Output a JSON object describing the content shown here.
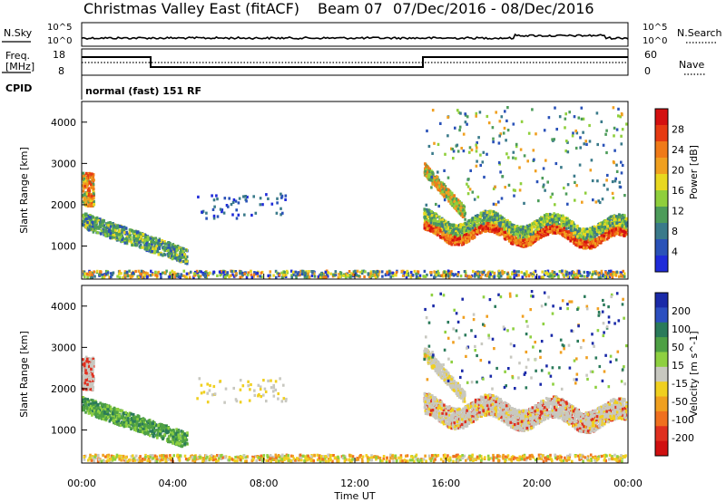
{
  "header": {
    "station": "Christmas Valley East (fitACF)",
    "beam": "Beam 07",
    "dates": "07/Dec/2016 - 08/Dec/2016"
  },
  "top_panels": {
    "nsky_label": "N.Sky",
    "nsearch_label": "N.Search",
    "noise_ticks": [
      "10^5",
      "10^0"
    ],
    "freq_label": "Freq.",
    "freq_unit": "[MHz]",
    "freq_ticks": [
      "18",
      "8"
    ],
    "nave_label": "Nave",
    "nave_ticks": [
      "60",
      "0"
    ],
    "cpid_label": "CPID",
    "cpid_text": "normal (fast) 151 RF"
  },
  "chart_data": [
    {
      "type": "heatmap",
      "name": "Power",
      "ylabel": "Slant Range [km]",
      "ylim": [
        200,
        4500
      ],
      "yticks": [
        1000,
        2000,
        3000,
        4000
      ],
      "colorbar_label": "Power [dB]",
      "colorbar_ticks": [
        4,
        8,
        12,
        16,
        20,
        24,
        28
      ],
      "colorbar_range": [
        0,
        32
      ],
      "colors": [
        "#1f2bd9",
        "#2a52b8",
        "#3a7a8a",
        "#4d9c5a",
        "#8fcf3c",
        "#e8d820",
        "#f0a020",
        "#f07a18",
        "#e63a12",
        "#d41010"
      ]
    },
    {
      "type": "heatmap",
      "name": "Velocity",
      "ylabel": "Slant Range [km]",
      "ylim": [
        200,
        4500
      ],
      "yticks": [
        1000,
        2000,
        3000,
        4000
      ],
      "colorbar_label": "Velocity [m s^-1]",
      "colorbar_ticks": [
        "200",
        "100",
        "50",
        "15",
        "-15",
        "-50",
        "-100",
        "-200"
      ],
      "colors": [
        "#1a2aa8",
        "#2c4fc0",
        "#2a7a5a",
        "#4ea044",
        "#8ed040",
        "#c8c8c0",
        "#f0d020",
        "#f0a020",
        "#f07020",
        "#e03020",
        "#d01010"
      ]
    }
  ],
  "x_axis": {
    "label": "Time UT",
    "ticks": [
      "00:00",
      "04:00",
      "08:00",
      "12:00",
      "16:00",
      "20:00",
      "00:00"
    ],
    "range_hours": [
      0,
      24
    ]
  }
}
